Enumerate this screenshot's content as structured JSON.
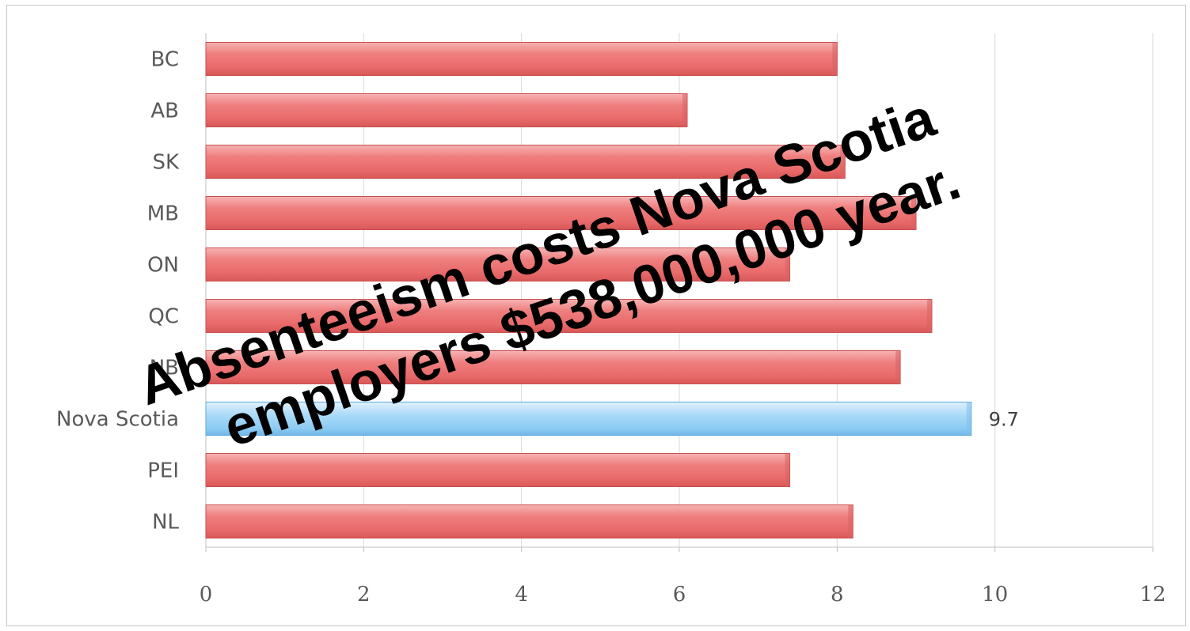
{
  "chart_data": {
    "type": "bar",
    "orientation": "horizontal",
    "categories": [
      "BC",
      "AB",
      "SK",
      "MB",
      "ON",
      "QC",
      "NB",
      "Nova Scotia",
      "PEI",
      "NL"
    ],
    "values": [
      8.0,
      6.1,
      8.1,
      9.0,
      7.4,
      9.2,
      8.8,
      9.7,
      7.4,
      8.2
    ],
    "highlight_category": "Nova Scotia",
    "data_labels": [
      {
        "category": "Nova Scotia",
        "text": "9.7"
      }
    ],
    "xlim": [
      0,
      12
    ],
    "xticks": [
      "0",
      "2",
      "4",
      "6",
      "8",
      "10",
      "12"
    ],
    "grid": true,
    "title": "",
    "xlabel": "",
    "ylabel": "",
    "colors": {
      "bar": "#f07c7c",
      "bar_highlight": "#9fd4f5",
      "grid": "#d9d9d9"
    }
  },
  "overlay_text": {
    "line1": "Absenteeism costs Nova Scotia",
    "line2": "employers $538,000,000 year."
  }
}
